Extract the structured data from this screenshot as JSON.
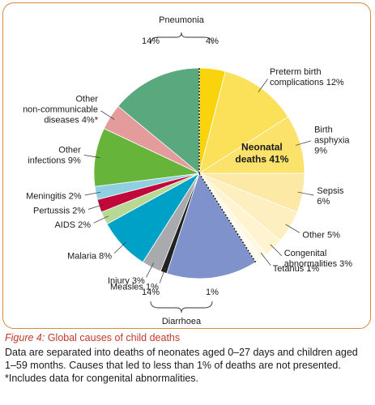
{
  "chart_data": {
    "type": "pie",
    "title": "Global causes of child deaths",
    "slices": [
      {
        "label": "Pneumonia 4%",
        "value": 4,
        "group": "neonatal",
        "color": "#f9d40c"
      },
      {
        "label": "Preterm birth complications 12%",
        "value": 12,
        "group": "neonatal",
        "color": "#fbe159"
      },
      {
        "label": "Birth asphyxia 9%",
        "value": 9,
        "group": "neonatal",
        "color": "#fbe36b"
      },
      {
        "label": "Sepsis 6%",
        "value": 6,
        "group": "neonatal",
        "color": "#fde9a6"
      },
      {
        "label": "Other 5%",
        "value": 5,
        "group": "neonatal",
        "color": "#feefc1"
      },
      {
        "label": "Congenital abnormalities 3%",
        "value": 3,
        "group": "neonatal",
        "color": "#fff4cf"
      },
      {
        "label": "Tetanus 1%",
        "value": 1,
        "group": "neonatal",
        "color": "#fff8e0"
      },
      {
        "label": "Diarrhoea 1%",
        "value": 1,
        "group": "neonatal",
        "color": "#fffbee"
      },
      {
        "label": "Diarrhoea 14%",
        "value": 14,
        "group": "child",
        "color": "#7f92cb"
      },
      {
        "label": "Measles 1%",
        "value": 1,
        "group": "child",
        "color": "#222222"
      },
      {
        "label": "Injury 3%",
        "value": 3,
        "group": "child",
        "color": "#a9aaad"
      },
      {
        "label": "Malaria 8%",
        "value": 8,
        "group": "child",
        "color": "#00a1c6"
      },
      {
        "label": "AIDS 2%",
        "value": 2,
        "group": "child",
        "color": "#b8d994"
      },
      {
        "label": "Pertussis 2%",
        "value": 2,
        "group": "child",
        "color": "#c0093a"
      },
      {
        "label": "Meningitis 2%",
        "value": 2,
        "group": "child",
        "color": "#8ed0e2"
      },
      {
        "label": "Other infections 9%",
        "value": 9,
        "group": "child",
        "color": "#66b43a"
      },
      {
        "label": "Other non-communicable diseases 4%*",
        "value": 4,
        "group": "child",
        "color": "#e39b9b"
      },
      {
        "label": "Pneumonia 14%",
        "value": 14,
        "group": "child",
        "color": "#5aa87d"
      }
    ],
    "center_label": [
      "Neonatal",
      "deaths 41%"
    ],
    "brackets": {
      "top": {
        "title": "Pneumonia",
        "left": "14%",
        "right": "4%"
      },
      "bottom": {
        "title": "Diarrhoea",
        "left": "14%",
        "right": "1%"
      }
    },
    "outer_labels": [
      {
        "slice": 1,
        "lines": [
          "Preterm birth",
          "complications 12%"
        ]
      },
      {
        "slice": 2,
        "lines": [
          "Birth",
          "asphyxia",
          "9%"
        ]
      },
      {
        "slice": 3,
        "lines": [
          "Sepsis",
          "6%"
        ]
      },
      {
        "slice": 4,
        "lines": [
          "Other 5%"
        ]
      },
      {
        "slice": 5,
        "lines": [
          "Congenital",
          "abnormalities 3%"
        ]
      },
      {
        "slice": 6,
        "lines": [
          "Tetanus 1%"
        ]
      },
      {
        "slice": 9,
        "lines": [
          "Measles 1%"
        ]
      },
      {
        "slice": 10,
        "lines": [
          "Injury 3%"
        ]
      },
      {
        "slice": 11,
        "lines": [
          "Malaria 8%"
        ]
      },
      {
        "slice": 12,
        "lines": [
          "AIDS 2%"
        ]
      },
      {
        "slice": 13,
        "lines": [
          "Pertussis 2%"
        ]
      },
      {
        "slice": 14,
        "lines": [
          "Meningitis 2%"
        ]
      },
      {
        "slice": 15,
        "lines": [
          "Other",
          "infections 9%"
        ]
      },
      {
        "slice": 16,
        "lines": [
          "Other",
          "non-communicable",
          "diseases 4%*"
        ]
      }
    ]
  },
  "caption": {
    "figure_label": "Figure 4:",
    "title": "Global causes of child deaths",
    "line1": "Data are separated into deaths of neonates aged 0–27 days and children aged",
    "line2": "1–59 months. Causes that led to less than 1% of deaths are not presented.",
    "line3": "*Includes data for congenital abnormalities."
  }
}
